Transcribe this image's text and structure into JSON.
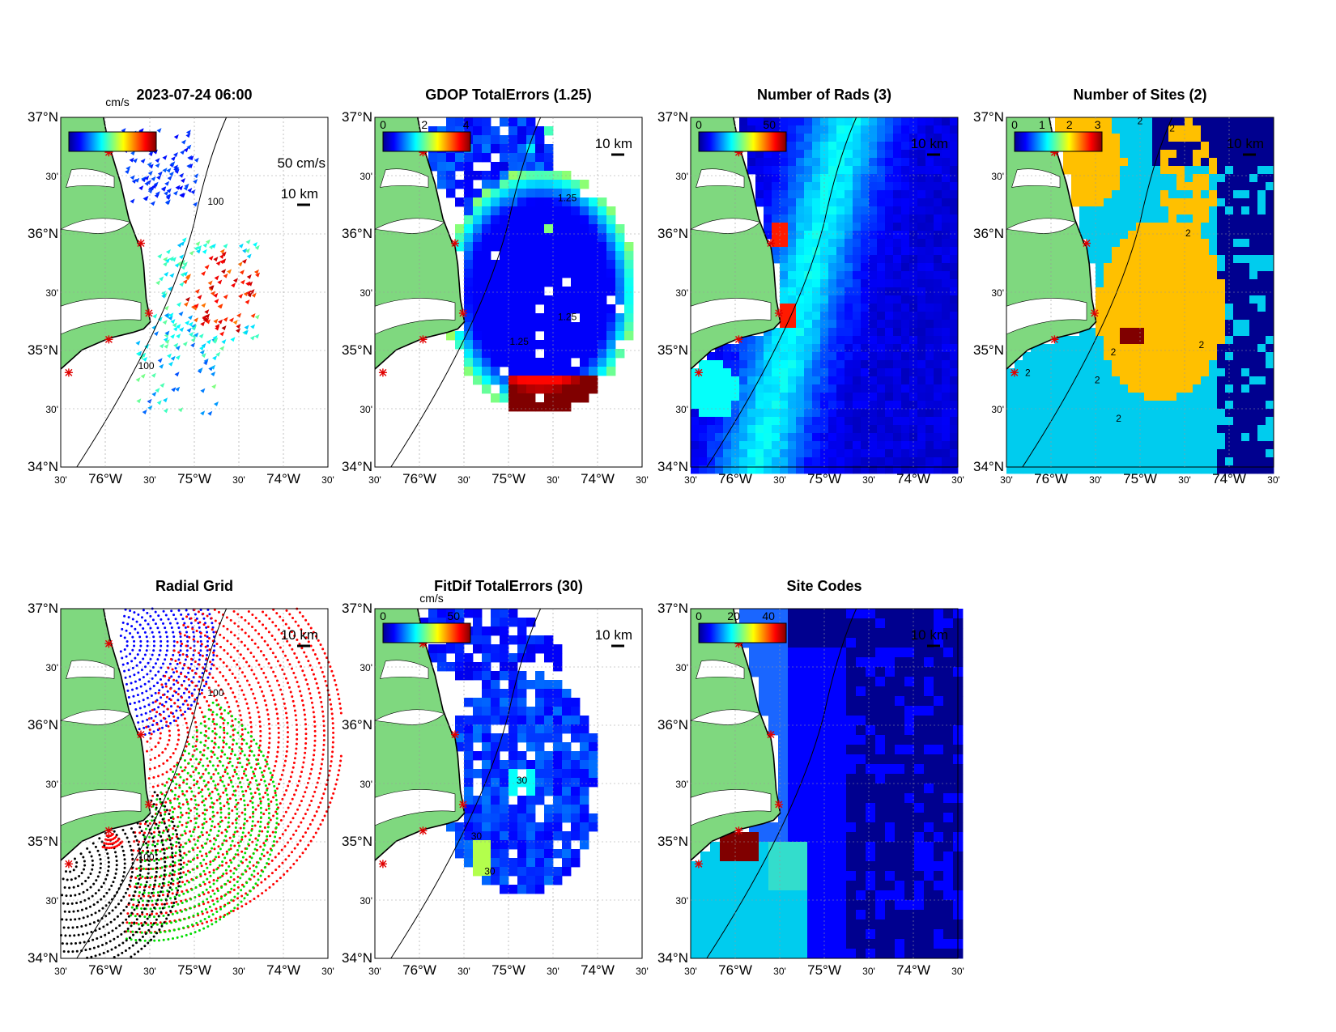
{
  "lat_ticks": [
    "37°N",
    "30'",
    "36°N",
    "30'",
    "35°N",
    "30'",
    "34°N"
  ],
  "lon_ticks": [
    "30'",
    "76°W",
    "30'",
    "75°W",
    "30'",
    "74°W",
    "30'"
  ],
  "scale_label": "10 km",
  "panels": [
    {
      "id": "currents",
      "title": "2023-07-24 06:00",
      "kind": "vectors",
      "colorbar": {
        "unit": "cm/s",
        "ticks": [],
        "overlap_text": "0"
      },
      "vector_scale_label": "50 cm/s",
      "contour_labels": [
        "100",
        "100"
      ]
    },
    {
      "id": "gdop",
      "title": "GDOP TotalErrors (1.25)",
      "kind": "field",
      "colorbar": {
        "unit": "",
        "ticks": [
          "0",
          "2",
          "4"
        ]
      },
      "contour_labels": [
        "1.25",
        "1.25",
        "1.25"
      ]
    },
    {
      "id": "nrads",
      "title": "Number of Rads (3)",
      "kind": "field",
      "colorbar": {
        "unit": "",
        "ticks": [
          "0",
          "50"
        ]
      },
      "contour_labels": []
    },
    {
      "id": "nsites",
      "title": "Number of Sites (2)",
      "kind": "field",
      "colorbar": {
        "unit": "",
        "ticks": [
          "0",
          "1",
          "2",
          "3"
        ]
      },
      "contour_labels": [
        "2",
        "2",
        "2",
        "2",
        "2",
        "2",
        "2",
        "2"
      ]
    },
    {
      "id": "radgrid",
      "title": "Radial Grid",
      "kind": "grid",
      "colorbar": null,
      "contour_labels": [
        "100",
        "100"
      ]
    },
    {
      "id": "fitdif",
      "title": "FitDif TotalErrors (30)",
      "kind": "field",
      "colorbar": {
        "unit": "cm/s",
        "ticks": [
          "0",
          "50"
        ]
      },
      "contour_labels": [
        "30",
        "30",
        "30"
      ]
    },
    {
      "id": "sitecodes",
      "title": "Site Codes",
      "kind": "field",
      "colorbar": {
        "unit": "",
        "ticks": [
          "0",
          "20",
          "40"
        ]
      },
      "contour_labels": []
    }
  ],
  "colors": {
    "land": "#7fd87f",
    "ocean_dark": "#00008f",
    "ocean_mid": "#0000ff",
    "cyan": "#00ccee",
    "orange": "#ffc000",
    "darkred": "#800000",
    "site_marker": "#e00000"
  }
}
